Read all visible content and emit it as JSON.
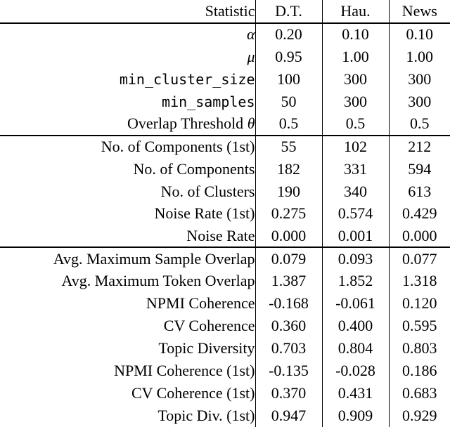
{
  "table": {
    "header": {
      "statistic_label": "Statistic",
      "columns": [
        "D.T.",
        "Hau.",
        "News"
      ]
    },
    "sections": [
      {
        "name": "hyperparameters",
        "rows": [
          {
            "label": [
              {
                "t": "α",
                "s": "math"
              }
            ],
            "values": [
              "0.20",
              "0.10",
              "0.10"
            ]
          },
          {
            "label": [
              {
                "t": "μ",
                "s": "math"
              }
            ],
            "values": [
              "0.95",
              "1.00",
              "1.00"
            ]
          },
          {
            "label": [
              {
                "t": "min_cluster_size",
                "s": "mono"
              }
            ],
            "values": [
              "100",
              "300",
              "300"
            ]
          },
          {
            "label": [
              {
                "t": "min_samples",
                "s": "mono"
              }
            ],
            "values": [
              "50",
              "300",
              "300"
            ]
          },
          {
            "label": [
              {
                "t": "Overlap Threshold ",
                "s": "serif"
              },
              {
                "t": "θ",
                "s": "math"
              }
            ],
            "values": [
              "0.5",
              "0.5",
              "0.5"
            ]
          }
        ]
      },
      {
        "name": "clustering-statistics",
        "rows": [
          {
            "label": [
              {
                "t": "No. of Components (1st)",
                "s": "serif"
              }
            ],
            "values": [
              "55",
              "102",
              "212"
            ]
          },
          {
            "label": [
              {
                "t": "No. of Components",
                "s": "serif"
              }
            ],
            "values": [
              "182",
              "331",
              "594"
            ]
          },
          {
            "label": [
              {
                "t": "No. of Clusters",
                "s": "serif"
              }
            ],
            "values": [
              "190",
              "340",
              "613"
            ]
          },
          {
            "label": [
              {
                "t": "Noise Rate (1st)",
                "s": "serif"
              }
            ],
            "values": [
              "0.275",
              "0.574",
              "0.429"
            ]
          },
          {
            "label": [
              {
                "t": "Noise Rate",
                "s": "serif"
              }
            ],
            "values": [
              "0.000",
              "0.001",
              "0.000"
            ]
          }
        ]
      },
      {
        "name": "evaluation-metrics",
        "rows": [
          {
            "label": [
              {
                "t": "Avg. Maximum Sample Overlap",
                "s": "serif"
              }
            ],
            "values": [
              "0.079",
              "0.093",
              "0.077"
            ]
          },
          {
            "label": [
              {
                "t": "Avg. Maximum Token Overlap",
                "s": "serif"
              }
            ],
            "values": [
              "1.387",
              "1.852",
              "1.318"
            ]
          },
          {
            "label": [
              {
                "t": "NPMI Coherence",
                "s": "serif"
              }
            ],
            "values": [
              "-0.168",
              "-0.061",
              "0.120"
            ]
          },
          {
            "label": [
              {
                "t": "CV Coherence",
                "s": "serif"
              }
            ],
            "values": [
              "0.360",
              "0.400",
              "0.595"
            ]
          },
          {
            "label": [
              {
                "t": "Topic Diversity",
                "s": "serif"
              }
            ],
            "values": [
              "0.703",
              "0.804",
              "0.803"
            ]
          },
          {
            "label": [
              {
                "t": "NPMI Coherence (1st)",
                "s": "serif"
              }
            ],
            "values": [
              "-0.135",
              "-0.028",
              "0.186"
            ]
          },
          {
            "label": [
              {
                "t": "CV Coherence (1st)",
                "s": "serif"
              }
            ],
            "values": [
              "0.370",
              "0.431",
              "0.683"
            ]
          },
          {
            "label": [
              {
                "t": "Topic Div. (1st)",
                "s": "serif"
              }
            ],
            "values": [
              "0.947",
              "0.909",
              "0.929"
            ]
          }
        ]
      }
    ],
    "colors": {
      "text": "#000000",
      "background": "#ffffff",
      "rule": "#000000"
    }
  }
}
